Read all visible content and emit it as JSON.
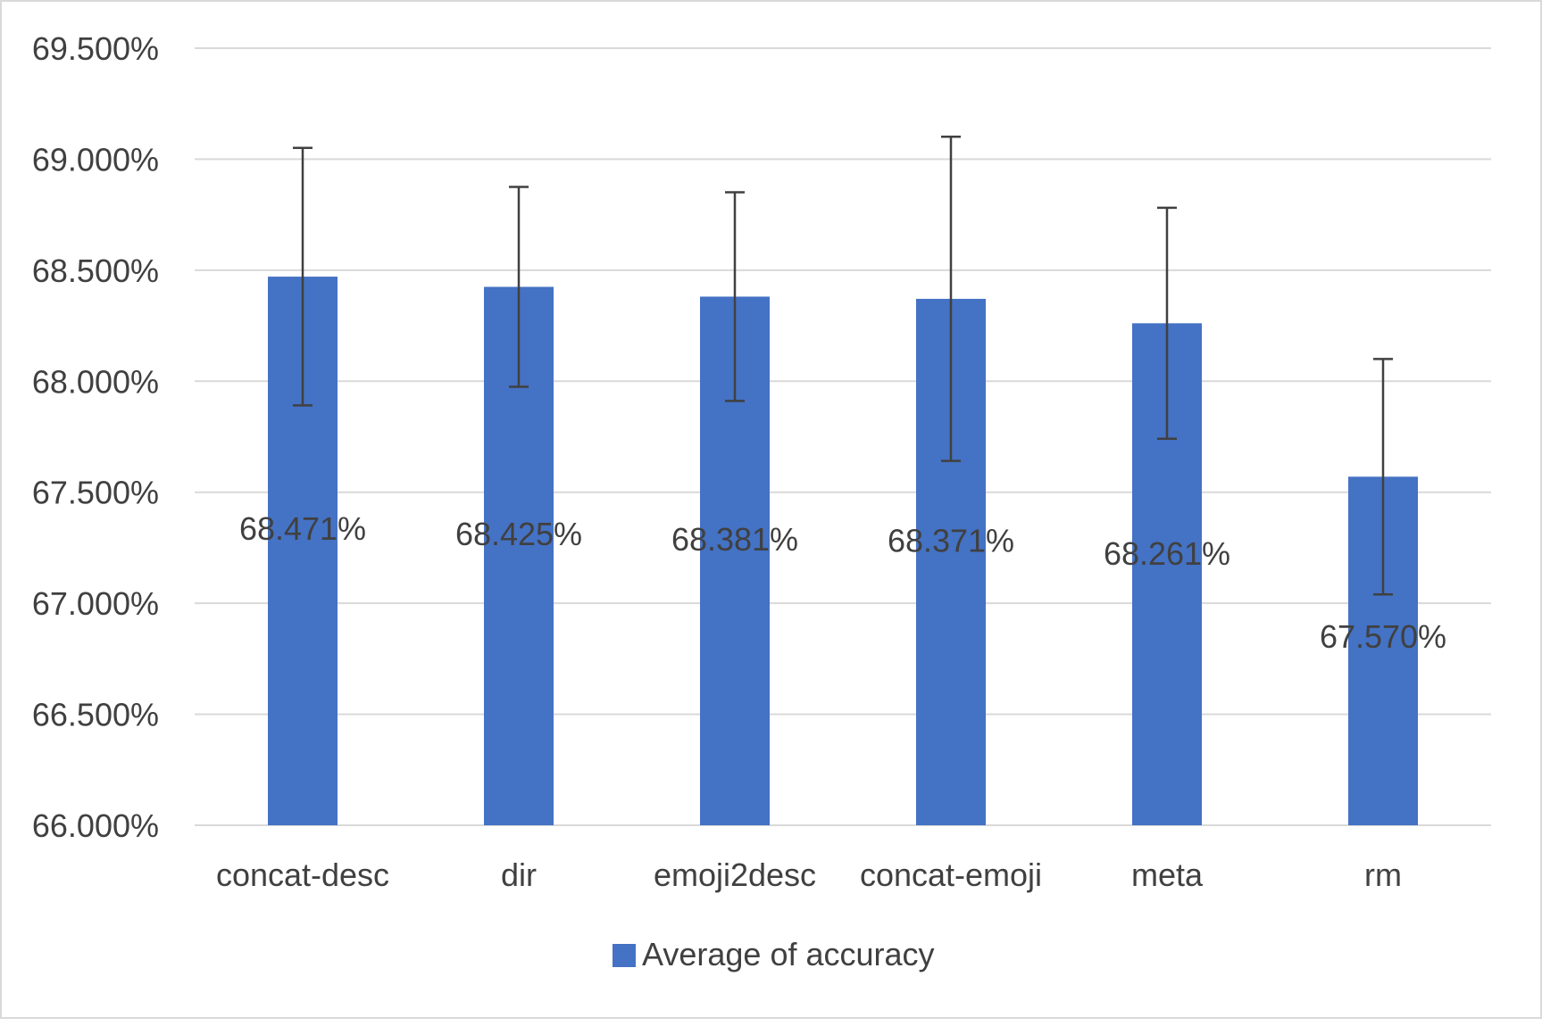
{
  "chart_data": {
    "type": "bar",
    "title": "",
    "xlabel": "",
    "ylabel": "",
    "categories": [
      "concat-desc",
      "dir",
      "emoji2desc",
      "concat-emoji",
      "meta",
      "rm"
    ],
    "series": [
      {
        "name": "Average of accuracy",
        "color": "#4472C4",
        "values": [
          68.471,
          68.425,
          68.381,
          68.371,
          68.261,
          67.57
        ],
        "error": [
          0.58,
          0.45,
          0.47,
          0.73,
          0.52,
          0.53
        ]
      }
    ],
    "data_labels": [
      "68.471%",
      "68.425%",
      "68.381%",
      "68.371%",
      "68.261%",
      "67.570%"
    ],
    "ylim": [
      66.0,
      69.5
    ],
    "yticks": [
      66.0,
      66.5,
      67.0,
      67.5,
      68.0,
      68.5,
      69.0,
      69.5
    ],
    "ytick_labels": [
      "66.000%",
      "66.500%",
      "67.000%",
      "67.500%",
      "68.000%",
      "68.500%",
      "69.000%",
      "69.500%"
    ],
    "grid": true,
    "legend_position": "bottom",
    "gridline_color": "#D9D9D9",
    "errorbar_color": "#404040",
    "text_color": "#404040"
  }
}
